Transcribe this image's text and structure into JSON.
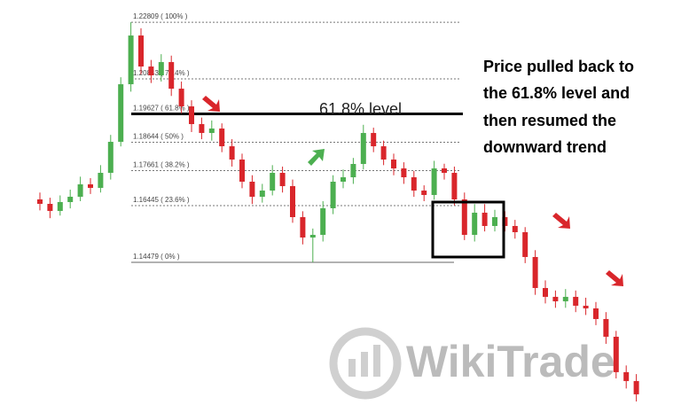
{
  "chart_data": {
    "type": "candlestick",
    "up_color": "#4caf50",
    "down_color": "#d9262b",
    "ylim": [
      1.0925,
      1.2358
    ],
    "open": [
      1.16661,
      1.16507,
      1.16261,
      1.16569,
      1.16753,
      1.17184,
      1.17061,
      1.17583,
      1.18659,
      1.20657,
      1.22348,
      1.21272,
      1.20965,
      1.21426,
      1.20503,
      1.19889,
      1.19274,
      1.18966,
      1.1912,
      1.18505,
      1.18044,
      1.17276,
      1.16753,
      1.16968,
      1.17583,
      1.17122,
      1.16046,
      1.15339,
      1.15431,
      1.16354,
      1.17276,
      1.17429,
      1.17891,
      1.18966,
      1.18505,
      1.18044,
      1.17737,
      1.17429,
      1.16968,
      1.16815,
      1.17737,
      1.17583,
      1.16661,
      1.15431,
      1.162,
      1.15739,
      1.16046,
      1.15739,
      1.15524,
      1.14663,
      1.13587,
      1.1328,
      1.13126,
      1.1328,
      1.12972,
      1.1288,
      1.12511,
      1.11896,
      1.10667,
      1.10359
    ],
    "high": [
      1.169,
      1.1672,
      1.168,
      1.17,
      1.1745,
      1.174,
      1.1785,
      1.189,
      1.209,
      1.22809,
      1.226,
      1.215,
      1.217,
      1.2165,
      1.2075,
      1.201,
      1.195,
      1.194,
      1.193,
      1.1875,
      1.1825,
      1.175,
      1.172,
      1.1785,
      1.178,
      1.1735,
      1.1625,
      1.1565,
      1.166,
      1.175,
      1.177,
      1.181,
      1.1925,
      1.1915,
      1.187,
      1.1825,
      1.1795,
      1.1765,
      1.1715,
      1.18,
      1.179,
      1.178,
      1.169,
      1.165,
      1.165,
      1.163,
      1.1625,
      1.1595,
      1.157,
      1.149,
      1.1385,
      1.135,
      1.1355,
      1.135,
      1.1325,
      1.131,
      1.1275,
      1.121,
      1.109,
      1.106
    ],
    "low": [
      1.1628,
      1.1601,
      1.161,
      1.1635,
      1.166,
      1.1685,
      1.169,
      1.1735,
      1.185,
      1.204,
      1.21,
      1.207,
      1.2075,
      1.2025,
      1.1965,
      1.19,
      1.1875,
      1.187,
      1.183,
      1.178,
      1.1705,
      1.165,
      1.1655,
      1.168,
      1.169,
      1.1585,
      1.151,
      1.14479,
      1.152,
      1.1615,
      1.1705,
      1.172,
      1.177,
      1.183,
      1.1785,
      1.175,
      1.172,
      1.1675,
      1.166,
      1.1665,
      1.1735,
      1.1645,
      1.1525,
      1.152,
      1.1555,
      1.1555,
      1.1555,
      1.153,
      1.1445,
      1.1335,
      1.1305,
      1.129,
      1.129,
      1.1275,
      1.1265,
      1.123,
      1.1165,
      1.1045,
      1.101,
      1.0965
    ],
    "close": [
      1.16507,
      1.16261,
      1.16569,
      1.16753,
      1.17184,
      1.17061,
      1.17583,
      1.18659,
      1.20657,
      1.22348,
      1.21272,
      1.20965,
      1.21426,
      1.20503,
      1.19889,
      1.19274,
      1.18966,
      1.1912,
      1.18505,
      1.18044,
      1.17276,
      1.16753,
      1.16968,
      1.17583,
      1.17122,
      1.16046,
      1.15339,
      1.15431,
      1.16354,
      1.17276,
      1.17429,
      1.17891,
      1.18966,
      1.18505,
      1.18044,
      1.17737,
      1.17429,
      1.16968,
      1.16815,
      1.17737,
      1.17583,
      1.16661,
      1.15431,
      1.162,
      1.15739,
      1.16046,
      1.15739,
      1.15524,
      1.14663,
      1.13587,
      1.1328,
      1.13126,
      1.1328,
      1.12972,
      1.1288,
      1.12511,
      1.11896,
      1.10667,
      1.10359,
      1.09898
    ],
    "fib_levels": [
      {
        "value": 1.22809,
        "label": "1.22809 ( 100% )"
      },
      {
        "value": 1.20843,
        "label": "1.20843 ( 76.4% )"
      },
      {
        "value": 1.19627,
        "label": "1.19627 ( 61.8% )"
      },
      {
        "value": 1.18644,
        "label": "1.18644 ( 50% )"
      },
      {
        "value": 1.17661,
        "label": "1.17661 ( 38.2% )"
      },
      {
        "value": 1.16445,
        "label": "1.16445 ( 23.6% )"
      },
      {
        "value": 1.14479,
        "label": "1.14479 ( 0% )"
      }
    ],
    "level_label": "61.8% level",
    "annotation": [
      "Price pulled back to",
      "the 61.8% level and",
      "then resumed the",
      "downward trend"
    ],
    "watermark": "WikiTrade"
  }
}
